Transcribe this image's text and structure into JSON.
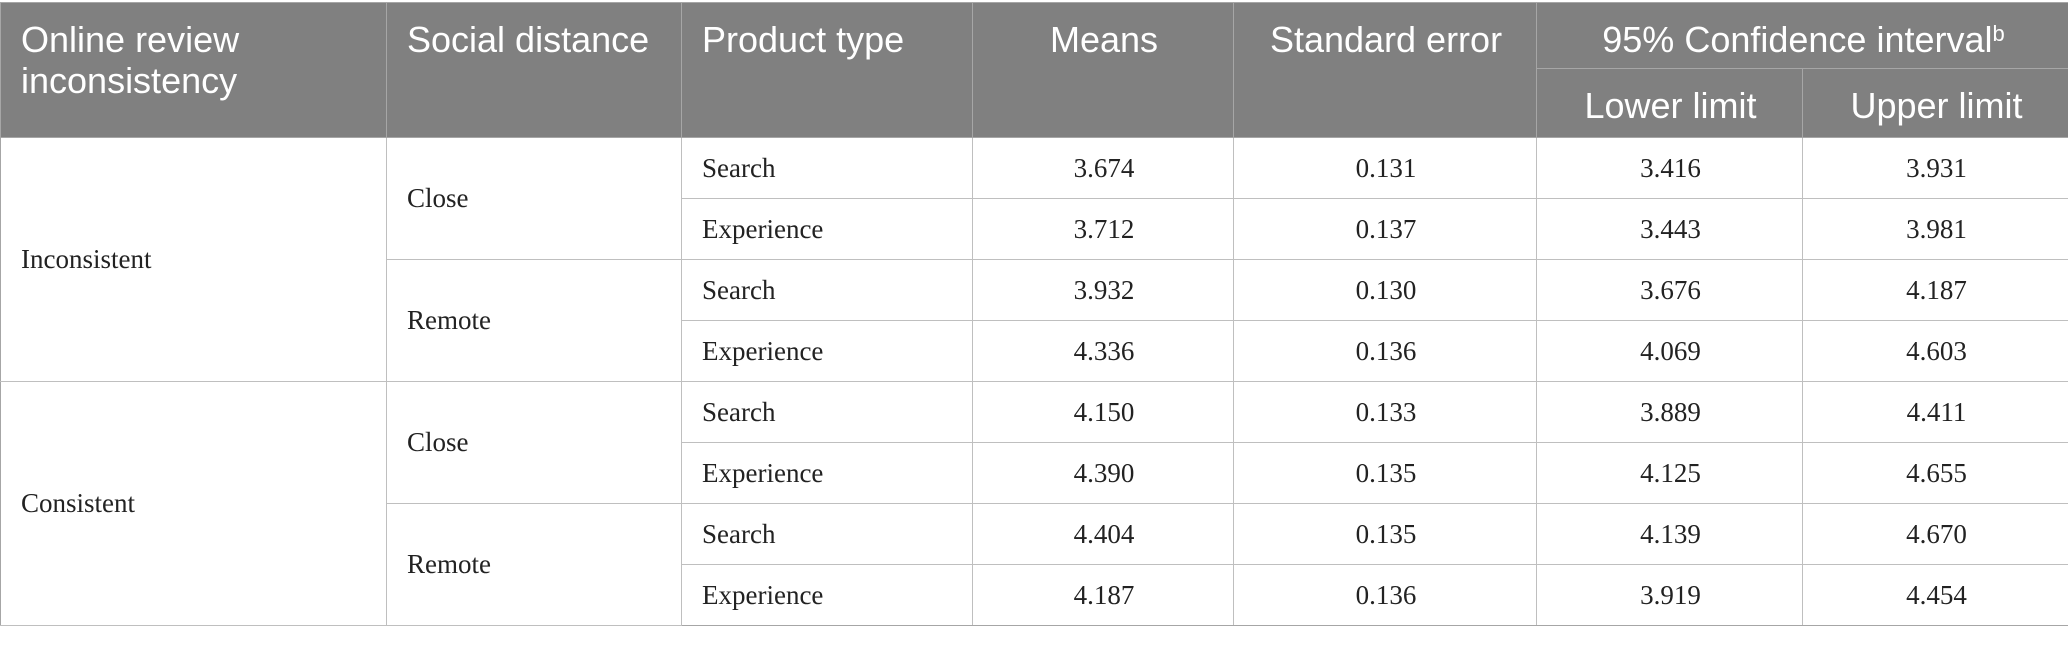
{
  "table": {
    "headers": {
      "col1": "Online review inconsistency",
      "col2": "Social distance",
      "col3": "Product type",
      "col4": "Means",
      "col5": "Standard error",
      "ci_group": "95% Confidence interval",
      "ci_group_sup": "b",
      "col6": "Lower limit",
      "col7": "Upper limit"
    },
    "groups": [
      {
        "label": "Inconsistent",
        "subgroups": [
          {
            "label": "Close",
            "rows": [
              {
                "product": "Search",
                "mean": "3.674",
                "se": "0.131",
                "lower": "3.416",
                "upper": "3.931"
              },
              {
                "product": "Experience",
                "mean": "3.712",
                "se": "0.137",
                "lower": "3.443",
                "upper": "3.981"
              }
            ]
          },
          {
            "label": "Remote",
            "rows": [
              {
                "product": "Search",
                "mean": "3.932",
                "se": "0.130",
                "lower": "3.676",
                "upper": "4.187"
              },
              {
                "product": "Experience",
                "mean": "4.336",
                "se": "0.136",
                "lower": "4.069",
                "upper": "4.603"
              }
            ]
          }
        ]
      },
      {
        "label": "Consistent",
        "subgroups": [
          {
            "label": "Close",
            "rows": [
              {
                "product": "Search",
                "mean": "4.150",
                "se": "0.133",
                "lower": "3.889",
                "upper": "4.411"
              },
              {
                "product": "Experience",
                "mean": "4.390",
                "se": "0.135",
                "lower": "4.125",
                "upper": "4.655"
              }
            ]
          },
          {
            "label": "Remote",
            "rows": [
              {
                "product": "Search",
                "mean": "4.404",
                "se": "0.135",
                "lower": "4.139",
                "upper": "4.670"
              },
              {
                "product": "Experience",
                "mean": "4.187",
                "se": "0.136",
                "lower": "3.919",
                "upper": "4.454"
              }
            ]
          }
        ]
      }
    ]
  }
}
